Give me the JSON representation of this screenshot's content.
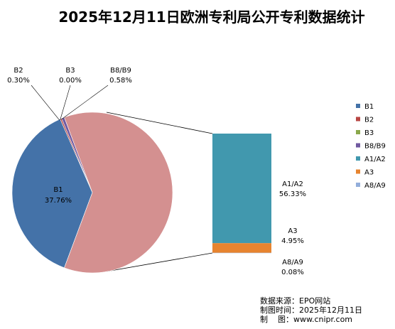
{
  "chart_data": {
    "type": "pie",
    "title": "2025年12月11日欧洲专利局公开专利数据统计",
    "legend_position": "right",
    "pie_slices": [
      {
        "name": "B1",
        "value": 37.76,
        "value_label": "37.76%",
        "color": "#4472a8"
      },
      {
        "name": "B2",
        "value": 0.3,
        "value_label": "0.30%",
        "color": "#b84643"
      },
      {
        "name": "B3",
        "value": 0.0,
        "value_label": "0.00%",
        "color": "#8aa84b"
      },
      {
        "name": "B8/B9",
        "value": 0.58,
        "value_label": "0.58%",
        "color": "#7059a0"
      },
      {
        "name": "Other",
        "value": 61.36,
        "value_label": "",
        "color": "#d49090"
      }
    ],
    "bar_segments": [
      {
        "name": "A1/A2",
        "value": 56.33,
        "value_label": "56.33%",
        "color": "#4198ae"
      },
      {
        "name": "A3",
        "value": 4.95,
        "value_label": "4.95%",
        "color": "#e7842f"
      },
      {
        "name": "A8/A9",
        "value": 0.08,
        "value_label": "0.08%",
        "color": "#93aedb"
      }
    ],
    "legend": [
      {
        "name": "B1",
        "color": "#4472a8"
      },
      {
        "name": "B2",
        "color": "#b84643"
      },
      {
        "name": "B3",
        "color": "#8aa84b"
      },
      {
        "name": "B8/B9",
        "color": "#7059a0"
      },
      {
        "name": "A1/A2",
        "color": "#4198ae"
      },
      {
        "name": "A3",
        "color": "#e7842f"
      },
      {
        "name": "A8/A9",
        "color": "#93aedb"
      }
    ]
  },
  "source": {
    "line1": "数据来源：EPO网站",
    "line2": "制图时间：2025年12月11日",
    "line3": "制    图：www.cnipr.com"
  }
}
